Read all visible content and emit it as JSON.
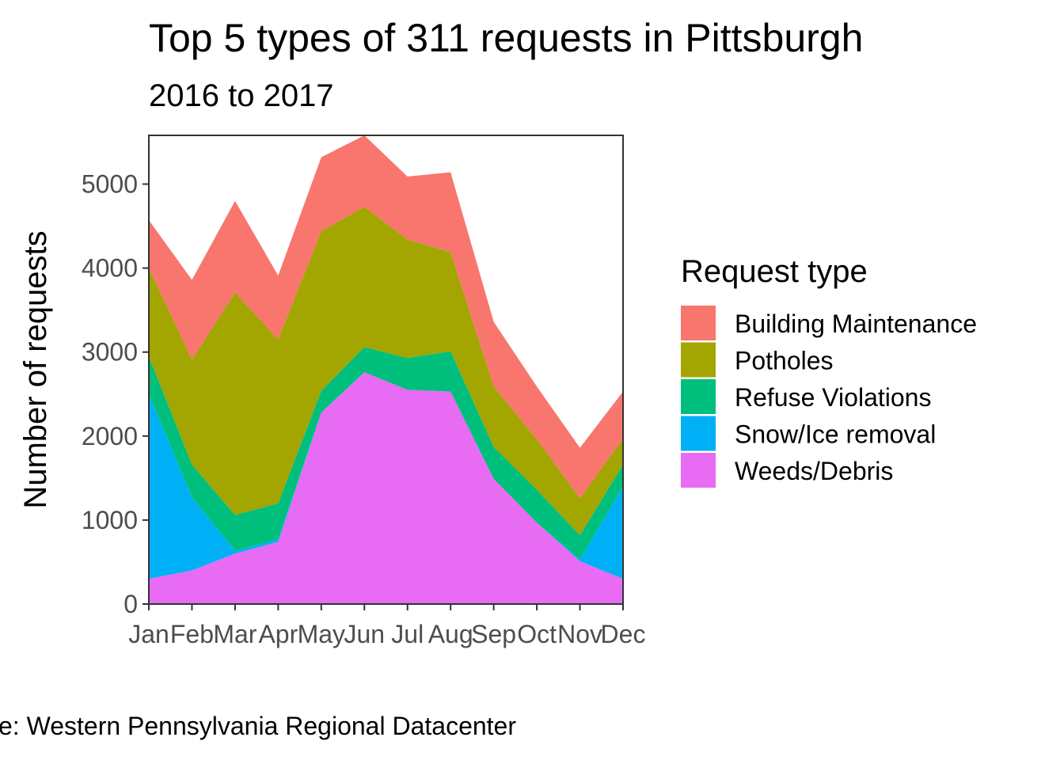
{
  "chart_data": {
    "type": "area",
    "stacked": true,
    "title": "Top 5 types of 311 requests in Pittsburgh",
    "subtitle": "2016 to 2017",
    "xlabel": "",
    "ylabel": "Number of requests",
    "caption": "e: Western Pennsylvania Regional Datacenter",
    "categories": [
      "Jan",
      "Feb",
      "Mar",
      "Apr",
      "May",
      "Jun",
      "Jul",
      "Aug",
      "Sep",
      "Oct",
      "Nov",
      "Dec"
    ],
    "yticks": [
      0,
      1000,
      2000,
      3000,
      4000,
      5000
    ],
    "ylim": [
      0,
      5580
    ],
    "legend_title": "Request type",
    "legend_position": "right",
    "series": [
      {
        "name": "Building Maintenance",
        "color": "#F8766D",
        "values": [
          570,
          950,
          1090,
          760,
          880,
          850,
          750,
          950,
          770,
          630,
          600,
          560
        ]
      },
      {
        "name": "Potholes",
        "color": "#A3A500",
        "values": [
          1050,
          1250,
          2650,
          1950,
          1900,
          1670,
          1410,
          1180,
          720,
          600,
          440,
          310
        ]
      },
      {
        "name": "Refuse Violations",
        "color": "#00BF7D",
        "values": [
          450,
          390,
          430,
          430,
          260,
          300,
          380,
          480,
          380,
          390,
          290,
          260
        ]
      },
      {
        "name": "Snow/Ice removal",
        "color": "#00B0F6",
        "values": [
          2200,
          870,
          30,
          30,
          0,
          0,
          0,
          0,
          0,
          0,
          20,
          1100
        ]
      },
      {
        "name": "Weeds/Debris",
        "color": "#E76BF3",
        "values": [
          300,
          400,
          600,
          740,
          2280,
          2760,
          2550,
          2530,
          1490,
          970,
          510,
          300
        ]
      }
    ]
  }
}
